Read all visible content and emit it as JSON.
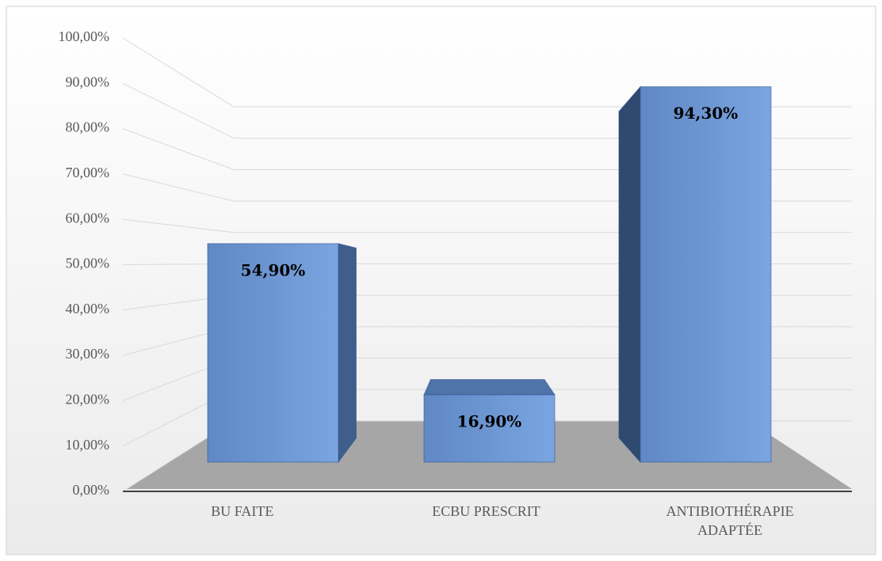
{
  "chart_data": {
    "type": "bar3d",
    "categories": [
      "BU FAITE",
      "ECBU PRESCRIT",
      "ANTIBIOTHÉRAPIE ADAPTÉE"
    ],
    "values": [
      54.9,
      16.9,
      94.3
    ],
    "value_labels": [
      "54,90%",
      "16,90%",
      "94,30%"
    ],
    "color": "#6a93d0",
    "ylim": [
      0,
      100
    ],
    "yticks": [
      {
        "value": 0,
        "label": "0,00%"
      },
      {
        "value": 10,
        "label": "10,00%"
      },
      {
        "value": 20,
        "label": "20,00%"
      },
      {
        "value": 30,
        "label": "30,00%"
      },
      {
        "value": 40,
        "label": "40,00%"
      },
      {
        "value": 50,
        "label": "50,00%"
      },
      {
        "value": 60,
        "label": "60,00%"
      },
      {
        "value": 70,
        "label": "70,00%"
      },
      {
        "value": 80,
        "label": "80,00%"
      },
      {
        "value": 90,
        "label": "90,00%"
      },
      {
        "value": 100,
        "label": "100,00%"
      }
    ],
    "grid": true
  }
}
